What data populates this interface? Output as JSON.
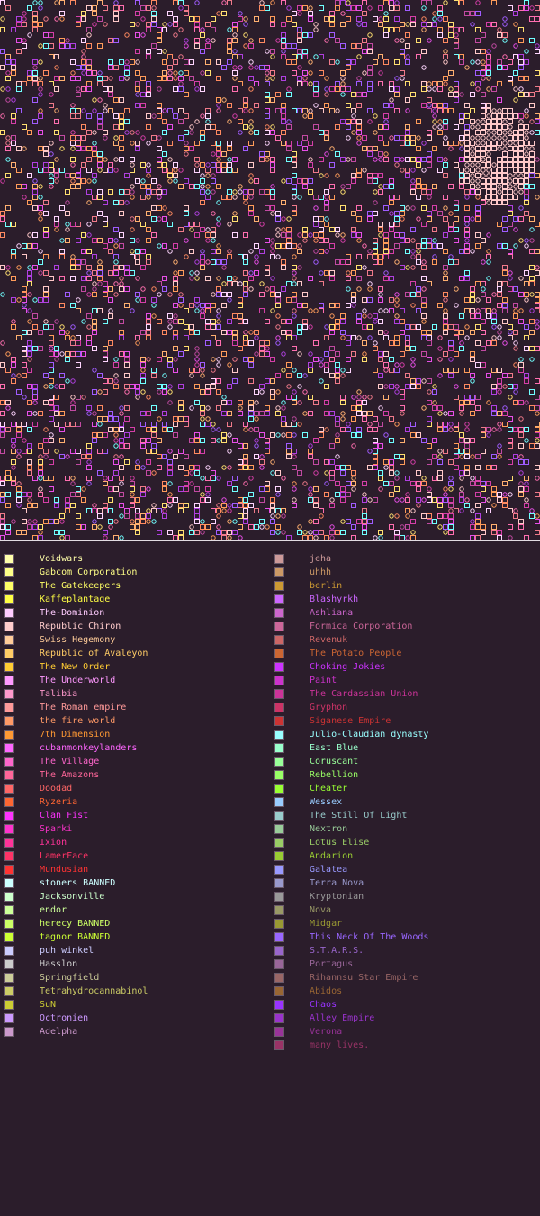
{
  "map": {
    "background": "#2b1d2b",
    "tile_colors": [
      "#e84fe8",
      "#d53fa8",
      "#ff6fb0",
      "#ffb070",
      "#ff9c5a",
      "#a05cff",
      "#70ffff",
      "#ffe070",
      "#c24aa2",
      "#ffd6ff",
      "#ff8a60",
      "#b040e0",
      "#f07a8a",
      "#ffc9c9"
    ]
  },
  "legend": {
    "left": [
      {
        "name": "Voidwars",
        "color": "#ffffaa"
      },
      {
        "name": "Gabcom Corporation",
        "color": "#ffff88"
      },
      {
        "name": "The Gatekeepers",
        "color": "#ffff66"
      },
      {
        "name": "Kaffeplantage",
        "color": "#ffff44"
      },
      {
        "name": "The-Dominion",
        "color": "#ffccff"
      },
      {
        "name": "Republic Chiron",
        "color": "#ffcccc"
      },
      {
        "name": "Swiss Hegemony",
        "color": "#ffcc99"
      },
      {
        "name": "Republic of Avaleyon",
        "color": "#ffcc66"
      },
      {
        "name": "The New Order",
        "color": "#ffcc33"
      },
      {
        "name": "The Underworld",
        "color": "#ff99ff"
      },
      {
        "name": "Talibia",
        "color": "#ff99cc"
      },
      {
        "name": "The Roman empire",
        "color": "#ff9999"
      },
      {
        "name": "the fire world",
        "color": "#ff9966"
      },
      {
        "name": "7th Dimension",
        "color": "#ff9933"
      },
      {
        "name": "cubanmonkeylanders",
        "color": "#ff66ff"
      },
      {
        "name": "The Village",
        "color": "#ff66cc"
      },
      {
        "name": "The Amazons",
        "color": "#ff6699"
      },
      {
        "name": "Doodad",
        "color": "#ff6666"
      },
      {
        "name": "Ryzeria",
        "color": "#ff6633"
      },
      {
        "name": "Clan Fist",
        "color": "#ff33ff"
      },
      {
        "name": "Sparki",
        "color": "#ff33cc"
      },
      {
        "name": "Ixion",
        "color": "#ff3399"
      },
      {
        "name": "LamerFace",
        "color": "#ff3366"
      },
      {
        "name": "Mundusian",
        "color": "#ff3333"
      },
      {
        "name": "stoners BANNED",
        "color": "#ccffff"
      },
      {
        "name": "Jacksonville",
        "color": "#ccffcc"
      },
      {
        "name": "endor",
        "color": "#ccff99"
      },
      {
        "name": "herecy BANNED",
        "color": "#ccff66"
      },
      {
        "name": "tagnor BANNED",
        "color": "#ccff33"
      },
      {
        "name": "puh winkel",
        "color": "#ccccff"
      },
      {
        "name": "Hasslon",
        "color": "#cccccc"
      },
      {
        "name": "Springfield",
        "color": "#cccc99"
      },
      {
        "name": "Tetrahydrocannabinol",
        "color": "#cccc66"
      },
      {
        "name": "SuN",
        "color": "#cccc33"
      },
      {
        "name": "Octronien",
        "color": "#cc99ff"
      },
      {
        "name": "Adelpha",
        "color": "#cc99cc"
      }
    ],
    "right": [
      {
        "name": "jeha",
        "color": "#cc9999"
      },
      {
        "name": "uhhh",
        "color": "#cc9966"
      },
      {
        "name": "berlin",
        "color": "#cc9933"
      },
      {
        "name": "Blashyrkh",
        "color": "#cc66ff"
      },
      {
        "name": "Ashliana",
        "color": "#cc66cc"
      },
      {
        "name": "Formica Corporation",
        "color": "#cc6699"
      },
      {
        "name": "Revenuk",
        "color": "#cc6666"
      },
      {
        "name": "The Potato People",
        "color": "#cc6633"
      },
      {
        "name": "Choking Jokies",
        "color": "#cc33ff"
      },
      {
        "name": "Paint",
        "color": "#cc33cc"
      },
      {
        "name": "The Cardassian Union",
        "color": "#cc3399"
      },
      {
        "name": "Gryphon",
        "color": "#cc3366"
      },
      {
        "name": "Siganese Empire",
        "color": "#cc3333"
      },
      {
        "name": "Julio-Claudian dynasty",
        "color": "#99ffff"
      },
      {
        "name": "East Blue",
        "color": "#99ffcc"
      },
      {
        "name": "Coruscant",
        "color": "#99ff99"
      },
      {
        "name": "Rebellion",
        "color": "#99ff66"
      },
      {
        "name": "Cheater",
        "color": "#99ff33"
      },
      {
        "name": "Wessex",
        "color": "#99ccff"
      },
      {
        "name": "The Still Of Light",
        "color": "#99cccc"
      },
      {
        "name": "Nextron",
        "color": "#99cc99"
      },
      {
        "name": "Lotus Elise",
        "color": "#99cc66"
      },
      {
        "name": "Andarion",
        "color": "#99cc33"
      },
      {
        "name": "Galatea",
        "color": "#9999ff"
      },
      {
        "name": "Terra Nova",
        "color": "#9999cc"
      },
      {
        "name": "Kryptonian",
        "color": "#999999"
      },
      {
        "name": "Nova",
        "color": "#999966"
      },
      {
        "name": "Midgar",
        "color": "#999933"
      },
      {
        "name": "This Neck Of The Woods",
        "color": "#9966ff"
      },
      {
        "name": "S.T.A.R.S.",
        "color": "#9966cc"
      },
      {
        "name": "Portagus",
        "color": "#996699"
      },
      {
        "name": "Rihannsu Star Empire",
        "color": "#996666"
      },
      {
        "name": "Abidos",
        "color": "#996633"
      },
      {
        "name": "Chaos",
        "color": "#9933ff"
      },
      {
        "name": "Alley Empire",
        "color": "#9933cc"
      },
      {
        "name": "Verona",
        "color": "#993399"
      },
      {
        "name": "many lives.",
        "color": "#993366"
      }
    ]
  }
}
